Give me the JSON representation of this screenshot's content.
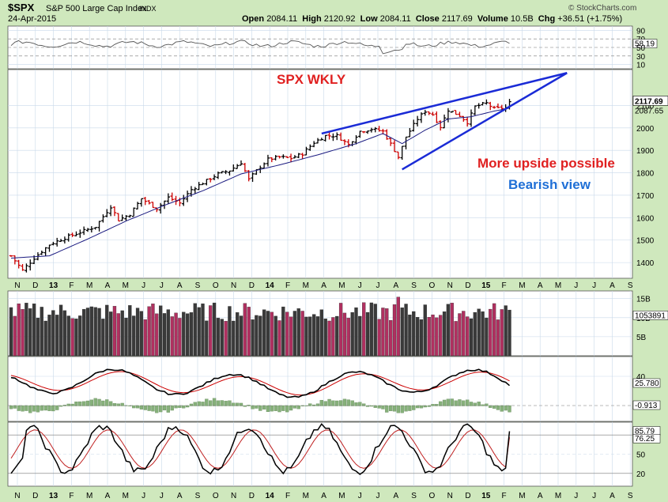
{
  "header": {
    "symbol": "$SPX",
    "name": "S&P 500 Large Cap Index",
    "exchange": "INDX",
    "date": "24-Apr-2015",
    "open_label": "Open",
    "open": "2084.11",
    "high_label": "High",
    "high": "2120.92",
    "low_label": "Low",
    "low": "2084.11",
    "close_label": "Close",
    "close": "2117.69",
    "volume_label": "Volume",
    "volume": "10.5B",
    "chg_label": "Chg",
    "chg": "+36.51 (+1.75%)",
    "watermark": "© StockCharts.com"
  },
  "annotations": {
    "title": "SPX WKLY",
    "upside": "More upside possible",
    "bearish": "Bearish view"
  },
  "colors": {
    "up": "#000000",
    "down": "#cc0000",
    "ma": "#1a1a80",
    "trendline": "#1a2bd6",
    "vol_up": "#3a3a3a",
    "vol_down": "#b03060",
    "macd_hist": "#86b07a",
    "stoch_k": "#000000",
    "stoch_d": "#c02020",
    "bg": "#ffffff",
    "frame": "#cfe8bd",
    "grid": "#c9d9ea"
  },
  "chart_data": [
    {
      "type": "line",
      "panel": "rsi",
      "y_ticks": [
        "90",
        "70",
        "58.19",
        "50",
        "30",
        "10"
      ],
      "ylim": [
        0,
        100
      ],
      "last_value": "58.19"
    },
    {
      "type": "candlestick",
      "panel": "price",
      "ylim": [
        1330,
        2260
      ],
      "y_ticks": [
        "2100",
        "2000",
        "1900",
        "1800",
        "1700",
        "1600",
        "1500",
        "1400"
      ],
      "last_price_label": "2117.69",
      "ma_label": "2087.65",
      "x_labels": [
        "N",
        "D",
        "13",
        "F",
        "M",
        "A",
        "M",
        "J",
        "J",
        "A",
        "S",
        "O",
        "N",
        "D",
        "14",
        "F",
        "M",
        "A",
        "M",
        "J",
        "J",
        "A",
        "S",
        "O",
        "N",
        "D",
        "15",
        "F",
        "M",
        "A",
        "M",
        "J",
        "J",
        "A",
        "S"
      ],
      "anchors": [
        [
          0,
          1430
        ],
        [
          3,
          1365
        ],
        [
          6,
          1420
        ],
        [
          10,
          1480
        ],
        [
          14,
          1510
        ],
        [
          18,
          1535
        ],
        [
          22,
          1560
        ],
        [
          26,
          1650
        ],
        [
          28,
          1590
        ],
        [
          31,
          1615
        ],
        [
          34,
          1685
        ],
        [
          38,
          1640
        ],
        [
          41,
          1690
        ],
        [
          44,
          1665
        ],
        [
          47,
          1725
        ],
        [
          51,
          1765
        ],
        [
          54,
          1795
        ],
        [
          57,
          1810
        ],
        [
          60,
          1845
        ],
        [
          62,
          1770
        ],
        [
          64,
          1810
        ],
        [
          67,
          1860
        ],
        [
          70,
          1870
        ],
        [
          73,
          1865
        ],
        [
          76,
          1885
        ],
        [
          79,
          1935
        ],
        [
          82,
          1965
        ],
        [
          85,
          1965
        ],
        [
          88,
          1925
        ],
        [
          91,
          1985
        ],
        [
          94,
          1995
        ],
        [
          97,
          1985
        ],
        [
          100,
          1900
        ],
        [
          101,
          1870
        ],
        [
          103,
          1960
        ],
        [
          106,
          2040
        ],
        [
          108,
          2075
        ],
        [
          110,
          2060
        ],
        [
          112,
          2005
        ],
        [
          114,
          2080
        ],
        [
          117,
          2055
        ],
        [
          119,
          2025
        ],
        [
          121,
          2095
        ],
        [
          124,
          2110
        ],
        [
          126,
          2085
        ],
        [
          129,
          2090
        ],
        [
          130,
          2117
        ]
      ],
      "ma_anchors": [
        [
          0,
          1420
        ],
        [
          10,
          1430
        ],
        [
          20,
          1505
        ],
        [
          30,
          1585
        ],
        [
          40,
          1655
        ],
        [
          50,
          1720
        ],
        [
          60,
          1795
        ],
        [
          70,
          1835
        ],
        [
          80,
          1880
        ],
        [
          90,
          1930
        ],
        [
          97,
          1975
        ],
        [
          102,
          1930
        ],
        [
          108,
          1990
        ],
        [
          114,
          2040
        ],
        [
          120,
          2050
        ],
        [
          126,
          2075
        ],
        [
          130,
          2088
        ]
      ],
      "trendlines": {
        "upper": [
          [
            81,
            1975
          ],
          [
            145,
            2245
          ]
        ],
        "lower": [
          [
            102,
            1815
          ],
          [
            145,
            2245
          ]
        ]
      }
    },
    {
      "type": "bar",
      "panel": "volume",
      "y_ticks": [
        "15B",
        "10B",
        "5B"
      ],
      "last_value": "1053891",
      "ylim": [
        0,
        17
      ]
    },
    {
      "type": "line",
      "panel": "macd",
      "y_ticks": [
        "40",
        "25.780",
        "-0.913"
      ],
      "last_value": "25.780",
      "hist_last": "-0.913"
    },
    {
      "type": "line",
      "panel": "stochastic",
      "ylim": [
        0,
        100
      ],
      "y_ticks": [
        "85.79",
        "76.25",
        "50",
        "20"
      ],
      "k_last": "85.79",
      "d_last": "76.25"
    }
  ]
}
